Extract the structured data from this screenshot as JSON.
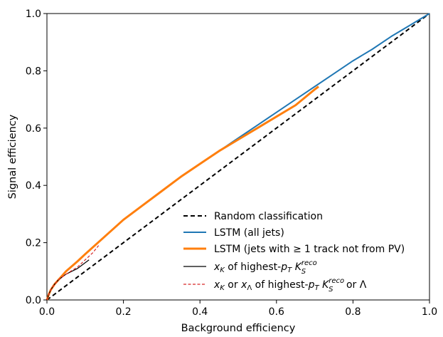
{
  "chart_data": {
    "type": "line",
    "title": "",
    "xlabel": "Background efficiency",
    "ylabel": "Signal efficiency",
    "xlim": [
      0.0,
      1.0
    ],
    "ylim": [
      0.0,
      1.0
    ],
    "xticks": [
      0.0,
      0.2,
      0.4,
      0.6,
      0.8,
      1.0
    ],
    "yticks": [
      0.0,
      0.2,
      0.4,
      0.6,
      0.8,
      1.0
    ],
    "xtick_labels": [
      "0.0",
      "0.2",
      "0.4",
      "0.6",
      "0.8",
      "1.0"
    ],
    "ytick_labels": [
      "0.0",
      "0.2",
      "0.4",
      "0.6",
      "0.8",
      "1.0"
    ],
    "grid": false,
    "legend_position": "lower-right",
    "series": [
      {
        "id": "random",
        "name": "Random classification",
        "color": "#000000",
        "style": "dashed",
        "x": [
          0.0,
          1.0
        ],
        "y": [
          0.0,
          1.0
        ]
      },
      {
        "id": "lstm-all",
        "name": "LSTM (all jets)",
        "color": "#1f77b4",
        "style": "solid",
        "x": [
          0.0,
          0.005,
          0.01,
          0.02,
          0.03,
          0.05,
          0.08,
          0.1,
          0.15,
          0.2,
          0.25,
          0.3,
          0.35,
          0.4,
          0.45,
          0.5,
          0.55,
          0.6,
          0.65,
          0.7,
          0.75,
          0.8,
          0.85,
          0.9,
          0.95,
          1.0
        ],
        "y": [
          0.0,
          0.02,
          0.035,
          0.055,
          0.07,
          0.1,
          0.135,
          0.16,
          0.22,
          0.28,
          0.33,
          0.38,
          0.43,
          0.475,
          0.52,
          0.565,
          0.61,
          0.655,
          0.7,
          0.745,
          0.79,
          0.835,
          0.875,
          0.92,
          0.96,
          1.0
        ]
      },
      {
        "id": "lstm-track",
        "name": "LSTM (jets with ≥ 1 track not from PV)",
        "color": "#ff7f0e",
        "style": "solid",
        "x": [
          0.0,
          0.005,
          0.01,
          0.02,
          0.03,
          0.05,
          0.08,
          0.1,
          0.15,
          0.2,
          0.25,
          0.3,
          0.35,
          0.4,
          0.45,
          0.5,
          0.55,
          0.6,
          0.65,
          0.7,
          0.71
        ],
        "y": [
          0.0,
          0.02,
          0.035,
          0.055,
          0.07,
          0.1,
          0.135,
          0.16,
          0.22,
          0.28,
          0.33,
          0.38,
          0.43,
          0.475,
          0.52,
          0.56,
          0.6,
          0.64,
          0.68,
          0.735,
          0.745
        ]
      },
      {
        "id": "xk",
        "name": "x_K of highest-p_T K_S^reco",
        "color": "#000000",
        "style": "solid",
        "x": [
          0.0,
          0.005,
          0.01,
          0.02,
          0.03,
          0.05,
          0.08,
          0.11
        ],
        "y": [
          0.0,
          0.02,
          0.035,
          0.055,
          0.07,
          0.09,
          0.11,
          0.14
        ]
      },
      {
        "id": "xk-lambda",
        "name": "x_K or x_Λ of highest-p_T K_S^reco or Λ",
        "color": "#d62728",
        "style": "dashed",
        "x": [
          0.0,
          0.005,
          0.01,
          0.02,
          0.03,
          0.05,
          0.08,
          0.1,
          0.12,
          0.135
        ],
        "y": [
          0.0,
          0.02,
          0.035,
          0.055,
          0.07,
          0.09,
          0.115,
          0.14,
          0.165,
          0.19
        ]
      }
    ],
    "legend_labels": {
      "random": "Random classification",
      "lstm_all": "LSTM (all jets)",
      "lstm_track_prefix": "LSTM (jets with ",
      "lstm_track_ge": "≥",
      "lstm_track_suffix": "1 track not from PV)",
      "xk_x": "x",
      "xk_sub_k": "K",
      "xk_mid": " of highest-",
      "xk_p": "p",
      "xk_sub_t": "T",
      "xk_space": " ",
      "xk_k": "K",
      "xk_sup_reco": "reco",
      "xk_sub_s": "S",
      "xl_x": "x",
      "xl_sub_k": "K",
      "xl_or": " or ",
      "xl_x2": "x",
      "xl_sub_lambda": "Λ",
      "xl_mid": " of highest-",
      "xl_p": "p",
      "xl_sub_t": "T",
      "xl_space": " ",
      "xl_k": "K",
      "xl_sup_reco": "reco",
      "xl_sub_s": "S",
      "xl_end": " or Λ"
    }
  }
}
